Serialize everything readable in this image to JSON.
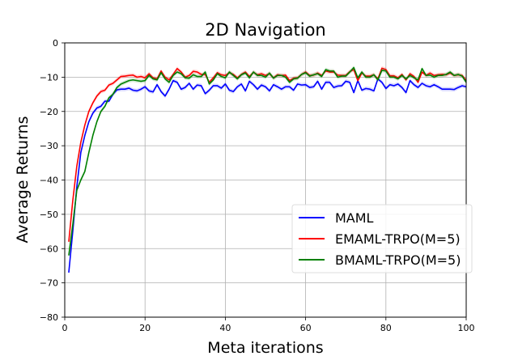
{
  "chart_data": {
    "type": "line",
    "title": "2D Navigation",
    "xlabel": "Meta iterations",
    "ylabel": "Average Returns",
    "xlim": [
      0,
      100
    ],
    "ylim": [
      -80,
      0
    ],
    "xticks": [
      0,
      20,
      40,
      60,
      80,
      100
    ],
    "yticks": [
      0,
      -10,
      -20,
      -30,
      -40,
      -50,
      -60,
      -70,
      -80
    ],
    "grid": true,
    "legend_position": "lower-right",
    "series": [
      {
        "name": "MAML",
        "color": "#0000ff",
        "x": [
          1,
          2,
          3,
          4,
          5,
          6,
          7,
          8,
          9,
          10,
          11,
          12,
          13,
          14,
          15,
          16,
          17,
          18,
          19,
          20,
          21,
          22,
          23,
          24,
          25,
          26,
          27,
          28,
          29,
          30,
          31,
          32,
          33,
          34,
          35,
          36,
          37,
          38,
          39,
          40,
          41,
          42,
          43,
          44,
          45,
          46,
          47,
          48,
          49,
          50,
          51,
          52,
          53,
          54,
          55,
          56,
          57,
          58,
          59,
          60,
          61,
          62,
          63,
          64,
          65,
          66,
          67,
          68,
          69,
          70,
          71,
          72,
          73,
          74,
          75,
          76,
          77,
          78,
          79,
          80,
          81,
          82,
          83,
          84,
          85,
          86,
          87,
          88,
          89,
          90,
          91,
          92,
          93,
          94,
          95,
          96,
          97,
          98,
          99,
          100
        ],
        "y": [
          -67,
          -55,
          -42,
          -32,
          -27,
          -23,
          -20.5,
          -19,
          -18.5,
          -17,
          -17,
          -15,
          -13.7,
          -13.5,
          -13.5,
          -13.2,
          -13.8,
          -14,
          -13.5,
          -12.8,
          -14,
          -14.3,
          -12.2,
          -14.2,
          -15.5,
          -13.5,
          -11,
          -11.5,
          -13.5,
          -13,
          -11.8,
          -13.5,
          -12.3,
          -12.5,
          -14.8,
          -13.8,
          -12.5,
          -12.5,
          -13.2,
          -12,
          -13.8,
          -14.2,
          -12.8,
          -12,
          -14,
          -11.2,
          -12.2,
          -13.5,
          -12.3,
          -12.8,
          -14,
          -12.2,
          -12.8,
          -13.5,
          -12.8,
          -12.8,
          -13.8,
          -12,
          -12.3,
          -12.2,
          -13,
          -12.8,
          -11.2,
          -13.5,
          -11.5,
          -11.5,
          -13,
          -12.6,
          -12.5,
          -11.2,
          -11.5,
          -14.5,
          -11,
          -13.8,
          -13.3,
          -13.5,
          -14,
          -10.5,
          -11.5,
          -13.3,
          -12.2,
          -12.5,
          -12,
          -13,
          -14.5,
          -11,
          -12.2,
          -13,
          -11.8,
          -12.5,
          -12.8,
          -12.2,
          -12.8,
          -13.5,
          -13.5,
          -13.5,
          -13.6,
          -13,
          -12.5,
          -12.8
        ]
      },
      {
        "name": "EMAML-TRPO(M=5)",
        "color": "#ff0000",
        "x": [
          1,
          2,
          3,
          4,
          5,
          6,
          7,
          8,
          9,
          10,
          11,
          12,
          13,
          14,
          15,
          16,
          17,
          18,
          19,
          20,
          21,
          22,
          23,
          24,
          25,
          26,
          27,
          28,
          29,
          30,
          31,
          32,
          33,
          34,
          35,
          36,
          37,
          38,
          39,
          40,
          41,
          42,
          43,
          44,
          45,
          46,
          47,
          48,
          49,
          50,
          51,
          52,
          53,
          54,
          55,
          56,
          57,
          58,
          59,
          60,
          61,
          62,
          63,
          64,
          65,
          66,
          67,
          68,
          69,
          70,
          71,
          72,
          73,
          74,
          75,
          76,
          77,
          78,
          79,
          80,
          81,
          82,
          83,
          84,
          85,
          86,
          87,
          88,
          89,
          90,
          91,
          92,
          93,
          94,
          95,
          96,
          97,
          98,
          99,
          100
        ],
        "y": [
          -58,
          -46,
          -36,
          -29,
          -24,
          -20,
          -17.5,
          -15.5,
          -14.2,
          -13.8,
          -12.3,
          -11.8,
          -10.8,
          -9.8,
          -9.7,
          -9.5,
          -9.4,
          -10,
          -9.8,
          -10.2,
          -9,
          -10.2,
          -10.5,
          -8.2,
          -10,
          -10.8,
          -9.2,
          -7.5,
          -8.5,
          -10,
          -9.5,
          -8.3,
          -8.5,
          -9.2,
          -9.2,
          -11.5,
          -10.2,
          -8.7,
          -9.3,
          -9.5,
          -8.7,
          -9.2,
          -10.2,
          -9.2,
          -8.5,
          -9.8,
          -8.6,
          -9.3,
          -9,
          -9.5,
          -9,
          -10.2,
          -9.3,
          -9.5,
          -9.4,
          -11,
          -10.3,
          -10.2,
          -9.2,
          -8.5,
          -9.5,
          -9.4,
          -8.8,
          -9.5,
          -8.2,
          -8.5,
          -8.5,
          -9.4,
          -9.5,
          -9.5,
          -8.4,
          -7.8,
          -11,
          -8.8,
          -9.7,
          -9.7,
          -9.3,
          -10.5,
          -7.4,
          -7.8,
          -9.6,
          -9.6,
          -10.2,
          -9.2,
          -10.8,
          -9,
          -9.8,
          -11.5,
          -8.5,
          -9.5,
          -8.8,
          -9.5,
          -9.3,
          -9.2,
          -9.3,
          -8.8,
          -9.5,
          -9.3,
          -9.5,
          -11
        ]
      },
      {
        "name": "BMAML-TRPO(M=5)",
        "color": "#008000",
        "x": [
          1,
          2,
          3,
          4,
          5,
          6,
          7,
          8,
          9,
          10,
          11,
          12,
          13,
          14,
          15,
          16,
          17,
          18,
          19,
          20,
          21,
          22,
          23,
          24,
          25,
          26,
          27,
          28,
          29,
          30,
          31,
          32,
          33,
          34,
          35,
          36,
          37,
          38,
          39,
          40,
          41,
          42,
          43,
          44,
          45,
          46,
          47,
          48,
          49,
          50,
          51,
          52,
          53,
          54,
          55,
          56,
          57,
          58,
          59,
          60,
          61,
          62,
          63,
          64,
          65,
          66,
          67,
          68,
          69,
          70,
          71,
          72,
          73,
          74,
          75,
          76,
          77,
          78,
          79,
          80,
          81,
          82,
          83,
          84,
          85,
          86,
          87,
          88,
          89,
          90,
          91,
          92,
          93,
          94,
          95,
          96,
          97,
          98,
          99,
          100
        ],
        "y": [
          -62,
          -53,
          -43,
          -40,
          -37.5,
          -32,
          -27,
          -23,
          -20,
          -18.5,
          -16,
          -15,
          -13,
          -12,
          -11.5,
          -11,
          -10.8,
          -11,
          -11.2,
          -11,
          -9.5,
          -10.5,
          -10.8,
          -8.7,
          -10.5,
          -11.5,
          -9.5,
          -8.5,
          -9,
          -10.2,
          -10.3,
          -9.3,
          -9.8,
          -9.8,
          -8.5,
          -12,
          -10.8,
          -9,
          -9.8,
          -10.2,
          -8.5,
          -9.5,
          -10.5,
          -9.3,
          -8.8,
          -10.2,
          -8.5,
          -9.5,
          -9.5,
          -10,
          -8.8,
          -10.3,
          -9.5,
          -9.5,
          -10,
          -11.5,
          -10.5,
          -10.3,
          -9.2,
          -8.7,
          -9.7,
          -9.3,
          -9,
          -9.8,
          -7.8,
          -8.2,
          -8.2,
          -10,
          -9.7,
          -9.7,
          -8.5,
          -7.2,
          -10.2,
          -8.5,
          -10,
          -10,
          -9.3,
          -10.8,
          -8,
          -8.2,
          -10,
          -10,
          -10.5,
          -9.5,
          -10.5,
          -9.5,
          -10.2,
          -10.8,
          -7.5,
          -9.5,
          -9.4,
          -10,
          -9.5,
          -9.5,
          -9.2,
          -8.5,
          -9.5,
          -9.2,
          -9.7,
          -11.5
        ]
      }
    ]
  }
}
